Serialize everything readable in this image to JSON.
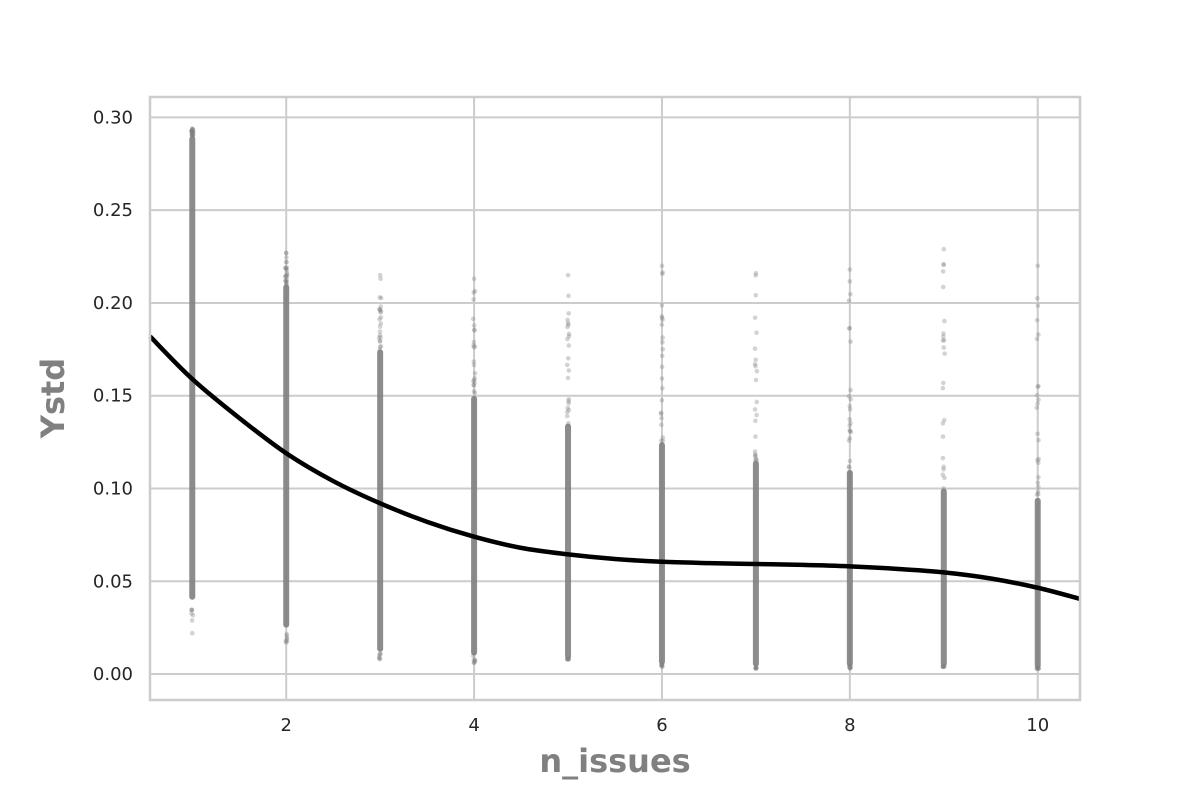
{
  "chart_data": {
    "type": "scatter",
    "title": "",
    "xlabel": "n_issues",
    "ylabel": "Ystd",
    "xlim": [
      0.55,
      10.45
    ],
    "ylim": [
      -0.014,
      0.311
    ],
    "xticks": [
      2,
      4,
      6,
      8,
      10
    ],
    "xtick_labels": [
      "2",
      "4",
      "6",
      "8",
      "10"
    ],
    "yticks": [
      0.0,
      0.05,
      0.1,
      0.15,
      0.2,
      0.25,
      0.3
    ],
    "ytick_labels": [
      "0.00",
      "0.05",
      "0.10",
      "0.15",
      "0.20",
      "0.25",
      "0.30"
    ],
    "grid": true,
    "point_color": "#808080",
    "line_color": "#000000",
    "scatter_series": {
      "name": "",
      "columns": [
        {
          "x": 1,
          "dense_range": [
            0.04,
            0.29
          ],
          "min": 0.022,
          "max": 0.294
        },
        {
          "x": 2,
          "dense_range": [
            0.025,
            0.21
          ],
          "min": 0.017,
          "max": 0.227
        },
        {
          "x": 3,
          "dense_range": [
            0.012,
            0.175
          ],
          "min": 0.008,
          "max": 0.215
        },
        {
          "x": 4,
          "dense_range": [
            0.01,
            0.15
          ],
          "min": 0.006,
          "max": 0.213
        },
        {
          "x": 5,
          "dense_range": [
            0.008,
            0.135
          ],
          "min": 0.008,
          "max": 0.215
        },
        {
          "x": 6,
          "dense_range": [
            0.005,
            0.125
          ],
          "min": 0.004,
          "max": 0.22
        },
        {
          "x": 7,
          "dense_range": [
            0.004,
            0.115
          ],
          "min": 0.003,
          "max": 0.216
        },
        {
          "x": 8,
          "dense_range": [
            0.004,
            0.11
          ],
          "min": 0.003,
          "max": 0.218
        },
        {
          "x": 9,
          "dense_range": [
            0.004,
            0.1
          ],
          "min": 0.004,
          "max": 0.229
        },
        {
          "x": 10,
          "dense_range": [
            0.003,
            0.095
          ],
          "min": 0.003,
          "max": 0.22
        }
      ]
    },
    "fit_line": {
      "name": "",
      "x": [
        0.55,
        1.0,
        1.5,
        2.0,
        2.5,
        3.0,
        3.5,
        4.0,
        4.5,
        5.0,
        5.5,
        6.0,
        6.5,
        7.0,
        7.5,
        8.0,
        8.5,
        9.0,
        9.5,
        10.0,
        10.45
      ],
      "y": [
        0.182,
        0.159,
        0.138,
        0.119,
        0.104,
        0.092,
        0.082,
        0.074,
        0.068,
        0.0645,
        0.062,
        0.0605,
        0.0598,
        0.0593,
        0.0588,
        0.058,
        0.0567,
        0.0548,
        0.0515,
        0.0465,
        0.0405
      ]
    }
  }
}
